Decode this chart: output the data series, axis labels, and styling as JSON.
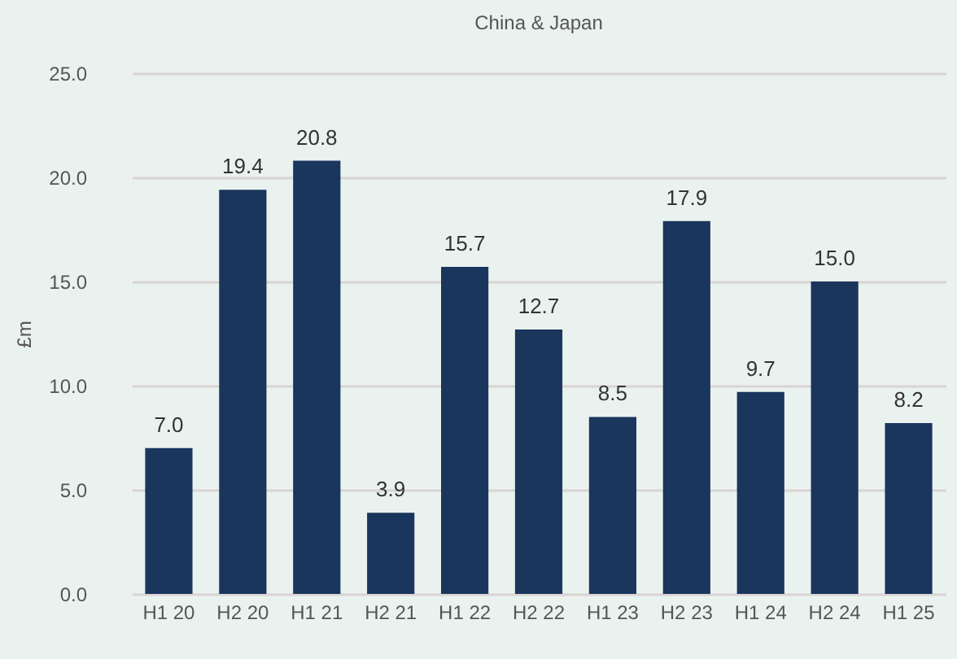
{
  "chart_data": {
    "type": "bar",
    "title": "China & Japan",
    "ylabel": "£m",
    "categories": [
      "H1 20",
      "H2 20",
      "H1 21",
      "H2 21",
      "H1 22",
      "H2 22",
      "H1 23",
      "H2 23",
      "H1 24",
      "H2 24",
      "H1 25"
    ],
    "values": [
      7.0,
      19.4,
      20.8,
      3.9,
      15.7,
      12.7,
      8.5,
      17.9,
      9.7,
      15.0,
      8.2
    ],
    "value_labels": [
      "7.0",
      "19.4",
      "20.8",
      "3.9",
      "15.7",
      "12.7",
      "8.5",
      "17.9",
      "9.7",
      "15.0",
      "8.2"
    ],
    "color": "#1a365d",
    "ylim": [
      0,
      25
    ],
    "yticks": [
      {
        "value": 0,
        "label": "0.0"
      },
      {
        "value": 5,
        "label": "5.0"
      },
      {
        "value": 10,
        "label": "10.0"
      },
      {
        "value": 15,
        "label": "15.0"
      },
      {
        "value": 20,
        "label": "20.0"
      },
      {
        "value": 25,
        "label": "25.0"
      }
    ],
    "grid": "y"
  }
}
